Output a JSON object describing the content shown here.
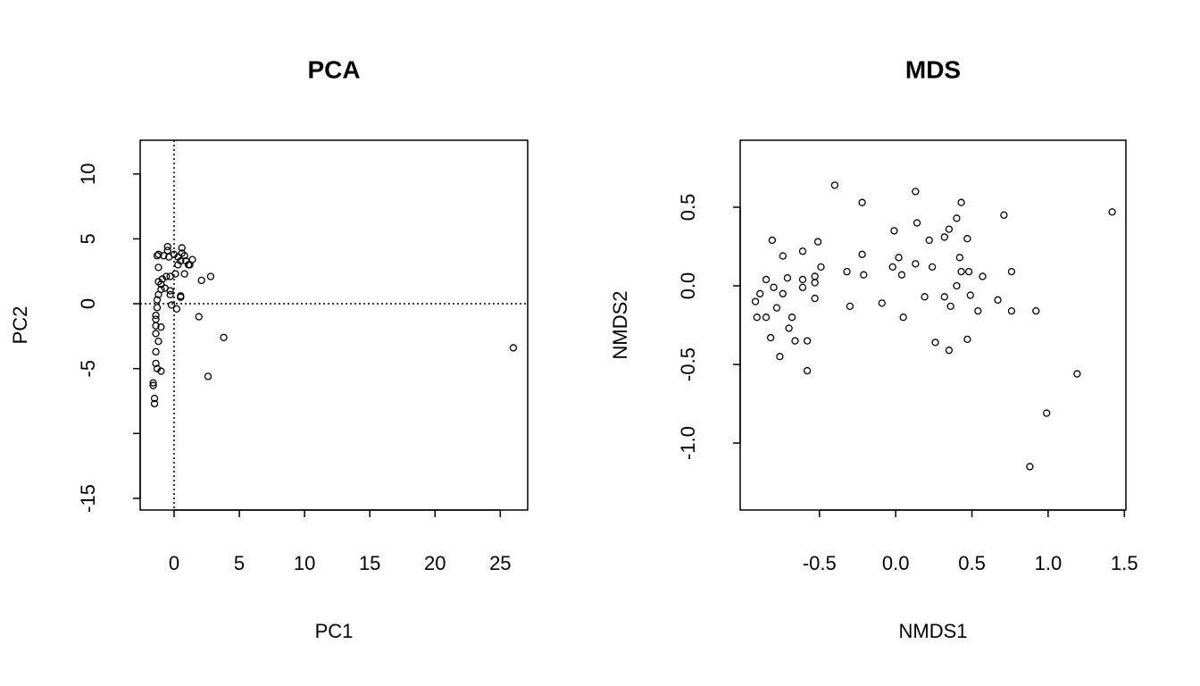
{
  "chart_data": [
    {
      "type": "scatter",
      "title": "PCA",
      "x_label": "PC1",
      "y_label": "PC2",
      "color": "#000000",
      "xlim": [
        -2.6,
        27.1
      ],
      "ylim": [
        -15.9,
        12.6
      ],
      "xticks": [
        0,
        5,
        10,
        15,
        20,
        25
      ],
      "yticks": [
        10,
        5,
        0,
        -5,
        {
          "value": -10,
          "label": null
        },
        -15
      ],
      "reference_lines": {
        "x": 0,
        "y": 0
      },
      "x": [
        26.0,
        2.8,
        2.1,
        1.9,
        3.8,
        2.6,
        1.4,
        1.1,
        -0.5,
        -0.5,
        -1.2,
        -1.3,
        -0.8,
        -0.4,
        0,
        0.3,
        0.6,
        0.6,
        0.8,
        0.5,
        0.9,
        0.3,
        1.2,
        0.8,
        0.1,
        -0.3,
        -0.6,
        -0.9,
        -1.0,
        -1.2,
        -1.2,
        -0.7,
        -1.0,
        -0.3,
        -0.3,
        -1.2,
        0.5,
        0.5,
        -1.3,
        -0.2,
        0.2,
        -1.3,
        -1.4,
        -1.4,
        -1.4,
        -1.0,
        -1.4,
        -1.2,
        -1.4,
        -1.4,
        -1.3,
        -1.0,
        -1.6,
        -1.6,
        -1.5,
        -1.5
      ],
      "values": [
        -3.4,
        2.1,
        1.8,
        -1.0,
        -2.6,
        -5.6,
        3.4,
        3.0,
        4.4,
        4.1,
        3.8,
        3.7,
        3.7,
        3.6,
        3.8,
        3.6,
        4.3,
        3.9,
        3.7,
        3.3,
        3.3,
        3.0,
        3.0,
        2.3,
        2.3,
        2.1,
        2.1,
        1.9,
        1.5,
        2.8,
        1.7,
        1.2,
        1.1,
        1.0,
        0.7,
        0.7,
        0.6,
        0.5,
        0.3,
        -0.1,
        -0.4,
        -0.3,
        -0.9,
        -1.2,
        -1.7,
        -1.8,
        -2.3,
        -2.9,
        -3.7,
        -4.6,
        -5.0,
        -5.2,
        -6.1,
        -6.3,
        -7.3,
        -7.7
      ]
    },
    {
      "type": "scatter",
      "title": "MDS",
      "x_label": "NMDS1",
      "y_label": "NMDS2",
      "color": "#000000",
      "xlim": [
        -1.02,
        1.51
      ],
      "ylim": [
        -1.426,
        0.926
      ],
      "xticks": [
        -0.5,
        {
          "value": 0,
          "label": "0.0"
        },
        0.5,
        {
          "value": 1,
          "label": "1.0"
        },
        1.5
      ],
      "yticks": [
        0.5,
        {
          "value": 0,
          "label": "0.0"
        },
        -0.5,
        {
          "value": -1,
          "label": "-1.0"
        }
      ],
      "x": [
        -0.4,
        0.13,
        -0.22,
        0.43,
        0.71,
        1.42,
        0.14,
        0.4,
        0.35,
        -0.01,
        0.32,
        0.47,
        -0.81,
        -0.51,
        0.22,
        -0.22,
        -0.74,
        -0.61,
        0.02,
        0.42,
        -0.02,
        0.13,
        0.24,
        -0.49,
        -0.32,
        -0.21,
        0.04,
        0.43,
        0.48,
        0.57,
        0.76,
        -0.53,
        -0.61,
        -0.85,
        -0.71,
        -0.53,
        -0.61,
        -0.8,
        0.4,
        -0.89,
        -0.74,
        0.19,
        0.32,
        0.49,
        0.67,
        -0.92,
        -0.53,
        -0.78,
        -0.3,
        -0.09,
        0.36,
        0.54,
        0.76,
        0.92,
        -0.91,
        -0.85,
        -0.68,
        0.05,
        -0.7,
        -0.82,
        -0.66,
        -0.58,
        0.26,
        0.47,
        0.35,
        -0.76,
        -0.58,
        1.19,
        0.99,
        0.88
      ],
      "values": [
        0.64,
        0.6,
        0.53,
        0.53,
        0.45,
        0.47,
        0.4,
        0.43,
        0.36,
        0.35,
        0.31,
        0.3,
        0.29,
        0.28,
        0.29,
        0.2,
        0.19,
        0.22,
        0.18,
        0.18,
        0.12,
        0.14,
        0.12,
        0.12,
        0.09,
        0.07,
        0.07,
        0.09,
        0.09,
        0.06,
        0.09,
        0.06,
        0.04,
        0.04,
        0.05,
        0.02,
        -0.01,
        -0.01,
        0.0,
        -0.05,
        -0.05,
        -0.07,
        -0.07,
        -0.06,
        -0.09,
        -0.1,
        -0.08,
        -0.14,
        -0.13,
        -0.11,
        -0.13,
        -0.16,
        -0.16,
        -0.16,
        -0.2,
        -0.2,
        -0.2,
        -0.2,
        -0.27,
        -0.33,
        -0.35,
        -0.35,
        -0.36,
        -0.34,
        -0.41,
        -0.45,
        -0.54,
        -0.56,
        -0.81,
        -1.15
      ]
    }
  ]
}
